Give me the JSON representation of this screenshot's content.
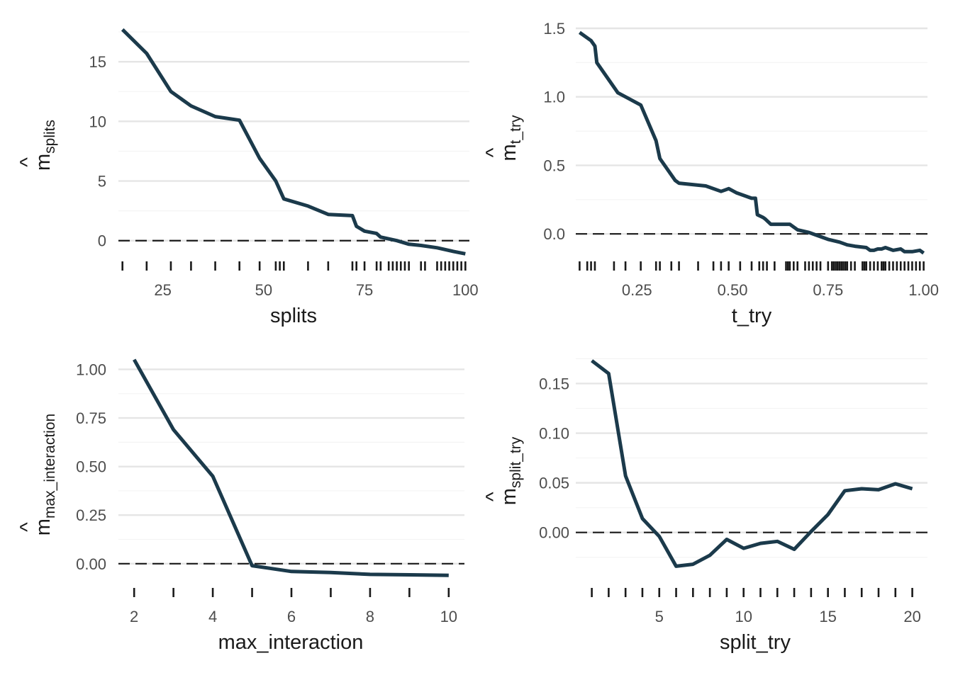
{
  "chart_data": [
    {
      "type": "line",
      "xlabel": "splits",
      "ylabel_main": "m",
      "ylabel_hat": "^",
      "ylabel_sub": "splits",
      "xlim": [
        14,
        101
      ],
      "ylim": [
        -1.5,
        17.8
      ],
      "x_ticks": [
        25,
        50,
        75,
        100
      ],
      "x_tick_labels": [
        "25",
        "50",
        "75",
        "100"
      ],
      "y_ticks": [
        0,
        5,
        10,
        15
      ],
      "y_tick_labels": [
        "0",
        "5",
        "10",
        "15"
      ],
      "y_minor": [
        2.5,
        7.5,
        12.5,
        17.5
      ],
      "reference_line": 0,
      "series": [
        {
          "x": [
            15,
            21,
            27,
            32,
            38,
            44,
            49,
            53,
            55,
            61,
            66,
            72,
            73,
            75,
            78,
            79,
            83,
            86,
            89,
            93,
            97,
            100
          ],
          "y": [
            17.7,
            15.7,
            12.5,
            11.3,
            10.4,
            10.1,
            6.9,
            5.0,
            3.5,
            2.9,
            2.2,
            2.1,
            1.2,
            0.8,
            0.6,
            0.3,
            0.0,
            -0.3,
            -0.4,
            -0.6,
            -0.9,
            -1.1
          ]
        }
      ],
      "rug": [
        15,
        21,
        27,
        32,
        38,
        44,
        49,
        53,
        54,
        55,
        61,
        66,
        72,
        73,
        75,
        78,
        79,
        81,
        82,
        83,
        84,
        85,
        86,
        89,
        90,
        93,
        94,
        95,
        96,
        97,
        98,
        99,
        100
      ]
    },
    {
      "type": "line",
      "xlabel": "t_try",
      "ylabel_main": "m",
      "ylabel_hat": "^",
      "ylabel_sub": "t_try",
      "xlim": [
        0.09,
        1.01
      ],
      "ylim": [
        -0.18,
        1.5
      ],
      "x_ticks": [
        0.25,
        0.5,
        0.75,
        1.0
      ],
      "x_tick_labels": [
        "0.25",
        "0.50",
        "0.75",
        "1.00"
      ],
      "y_ticks": [
        0.0,
        0.5,
        1.0,
        1.5
      ],
      "y_tick_labels": [
        "0.0",
        "0.5",
        "1.0",
        "1.5"
      ],
      "y_minor": [
        0.25,
        0.75,
        1.25
      ],
      "reference_line": 0,
      "series": [
        {
          "x": [
            0.1,
            0.13,
            0.14,
            0.145,
            0.2,
            0.26,
            0.3,
            0.31,
            0.35,
            0.36,
            0.43,
            0.47,
            0.48,
            0.49,
            0.51,
            0.55,
            0.56,
            0.565,
            0.58,
            0.585,
            0.6,
            0.65,
            0.66,
            0.67,
            0.7,
            0.72,
            0.75,
            0.78,
            0.8,
            0.82,
            0.85,
            0.86,
            0.87,
            0.88,
            0.89,
            0.9,
            0.92,
            0.94,
            0.95,
            0.97,
            0.99,
            1.0
          ],
          "y": [
            1.47,
            1.41,
            1.37,
            1.25,
            1.03,
            0.94,
            0.68,
            0.55,
            0.39,
            0.37,
            0.35,
            0.31,
            0.32,
            0.33,
            0.3,
            0.26,
            0.26,
            0.14,
            0.12,
            0.11,
            0.07,
            0.07,
            0.05,
            0.03,
            0.01,
            -0.01,
            -0.04,
            -0.06,
            -0.08,
            -0.09,
            -0.1,
            -0.12,
            -0.12,
            -0.11,
            -0.11,
            -0.1,
            -0.12,
            -0.11,
            -0.13,
            -0.13,
            -0.12,
            -0.14
          ]
        }
      ],
      "rug": [
        0.1,
        0.12,
        0.13,
        0.14,
        0.19,
        0.22,
        0.26,
        0.3,
        0.31,
        0.34,
        0.36,
        0.41,
        0.45,
        0.47,
        0.49,
        0.52,
        0.55,
        0.57,
        0.58,
        0.59,
        0.61,
        0.64,
        0.645,
        0.65,
        0.66,
        0.67,
        0.69,
        0.7,
        0.71,
        0.72,
        0.73,
        0.75,
        0.76,
        0.765,
        0.77,
        0.775,
        0.78,
        0.785,
        0.79,
        0.795,
        0.8,
        0.81,
        0.82,
        0.84,
        0.845,
        0.85,
        0.86,
        0.87,
        0.88,
        0.89,
        0.895,
        0.9,
        0.91,
        0.92,
        0.93,
        0.94,
        0.95,
        0.96,
        0.97,
        0.98,
        0.99,
        1.0
      ]
    },
    {
      "type": "line",
      "xlabel": "max_interaction",
      "ylabel_main": "m",
      "ylabel_hat": "^",
      "ylabel_sub": "max_interaction",
      "xlim": [
        1.6,
        10.4
      ],
      "ylim": [
        -0.11,
        1.06
      ],
      "x_ticks": [
        2,
        4,
        6,
        8,
        10
      ],
      "x_tick_labels": [
        "2",
        "4",
        "6",
        "8",
        "10"
      ],
      "y_ticks": [
        0.0,
        0.25,
        0.5,
        0.75,
        1.0
      ],
      "y_tick_labels": [
        "0.00",
        "0.25",
        "0.50",
        "0.75",
        "1.00"
      ],
      "y_minor": [
        0.125,
        0.375,
        0.625,
        0.875
      ],
      "reference_line": 0,
      "series": [
        {
          "x": [
            2,
            3,
            4,
            5,
            6,
            7,
            8,
            9,
            10
          ],
          "y": [
            1.05,
            0.69,
            0.45,
            -0.01,
            -0.04,
            -0.045,
            -0.055,
            -0.057,
            -0.06
          ]
        }
      ],
      "rug": [
        2,
        3,
        4,
        5,
        6,
        7,
        8,
        9,
        10
      ]
    },
    {
      "type": "line",
      "xlabel": "split_try",
      "ylabel_main": "m",
      "ylabel_hat": "^",
      "ylabel_sub": "split_try",
      "xlim": [
        0.05,
        20.9
      ],
      "ylim": [
        -0.053,
        0.176
      ],
      "x_ticks": [
        5,
        10,
        15,
        20
      ],
      "x_tick_labels": [
        "5",
        "10",
        "15",
        "20"
      ],
      "y_ticks": [
        0.0,
        0.05,
        0.1,
        0.15
      ],
      "y_tick_labels": [
        "0.00",
        "0.05",
        "0.10",
        "0.15"
      ],
      "y_minor": [
        -0.025,
        0.025,
        0.075,
        0.125,
        0.175
      ],
      "reference_line": 0,
      "series": [
        {
          "x": [
            1,
            2,
            3,
            4,
            5,
            6,
            7,
            8,
            9,
            10,
            11,
            12,
            13,
            14,
            15,
            16,
            17,
            18,
            19,
            20
          ],
          "y": [
            0.173,
            0.16,
            0.057,
            0.014,
            -0.004,
            -0.034,
            -0.032,
            -0.023,
            -0.007,
            -0.016,
            -0.011,
            -0.009,
            -0.017,
            0.001,
            0.018,
            0.042,
            0.044,
            0.043,
            0.049,
            0.044
          ]
        }
      ],
      "rug": [
        1,
        2,
        3,
        4,
        5,
        6,
        7,
        8,
        9,
        10,
        11,
        12,
        13,
        14,
        15,
        16,
        17,
        18,
        19,
        20
      ]
    }
  ]
}
